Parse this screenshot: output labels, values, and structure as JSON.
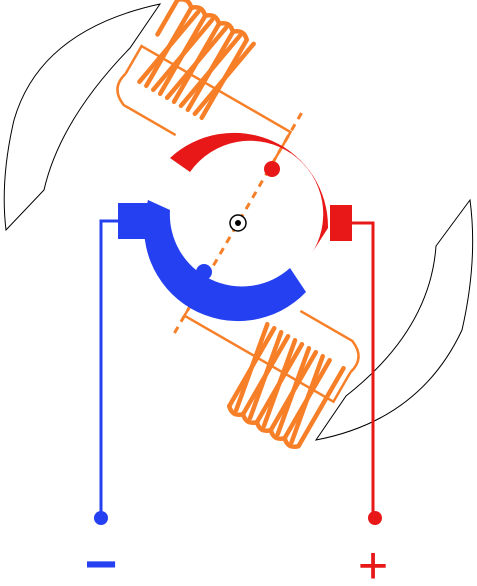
{
  "terminals": {
    "negative": {
      "symbol": "−",
      "color": "#2440f0"
    },
    "positive": {
      "symbol": "+",
      "color": "#e81818"
    }
  },
  "colors": {
    "stator_frame": "#000000",
    "field_coil": "#f77f28",
    "commutator_positive": "#e81818",
    "commutator_negative": "#2440f0",
    "background": "#ffffff"
  },
  "icons": {
    "rotor_axle": "axle-dot-icon"
  }
}
